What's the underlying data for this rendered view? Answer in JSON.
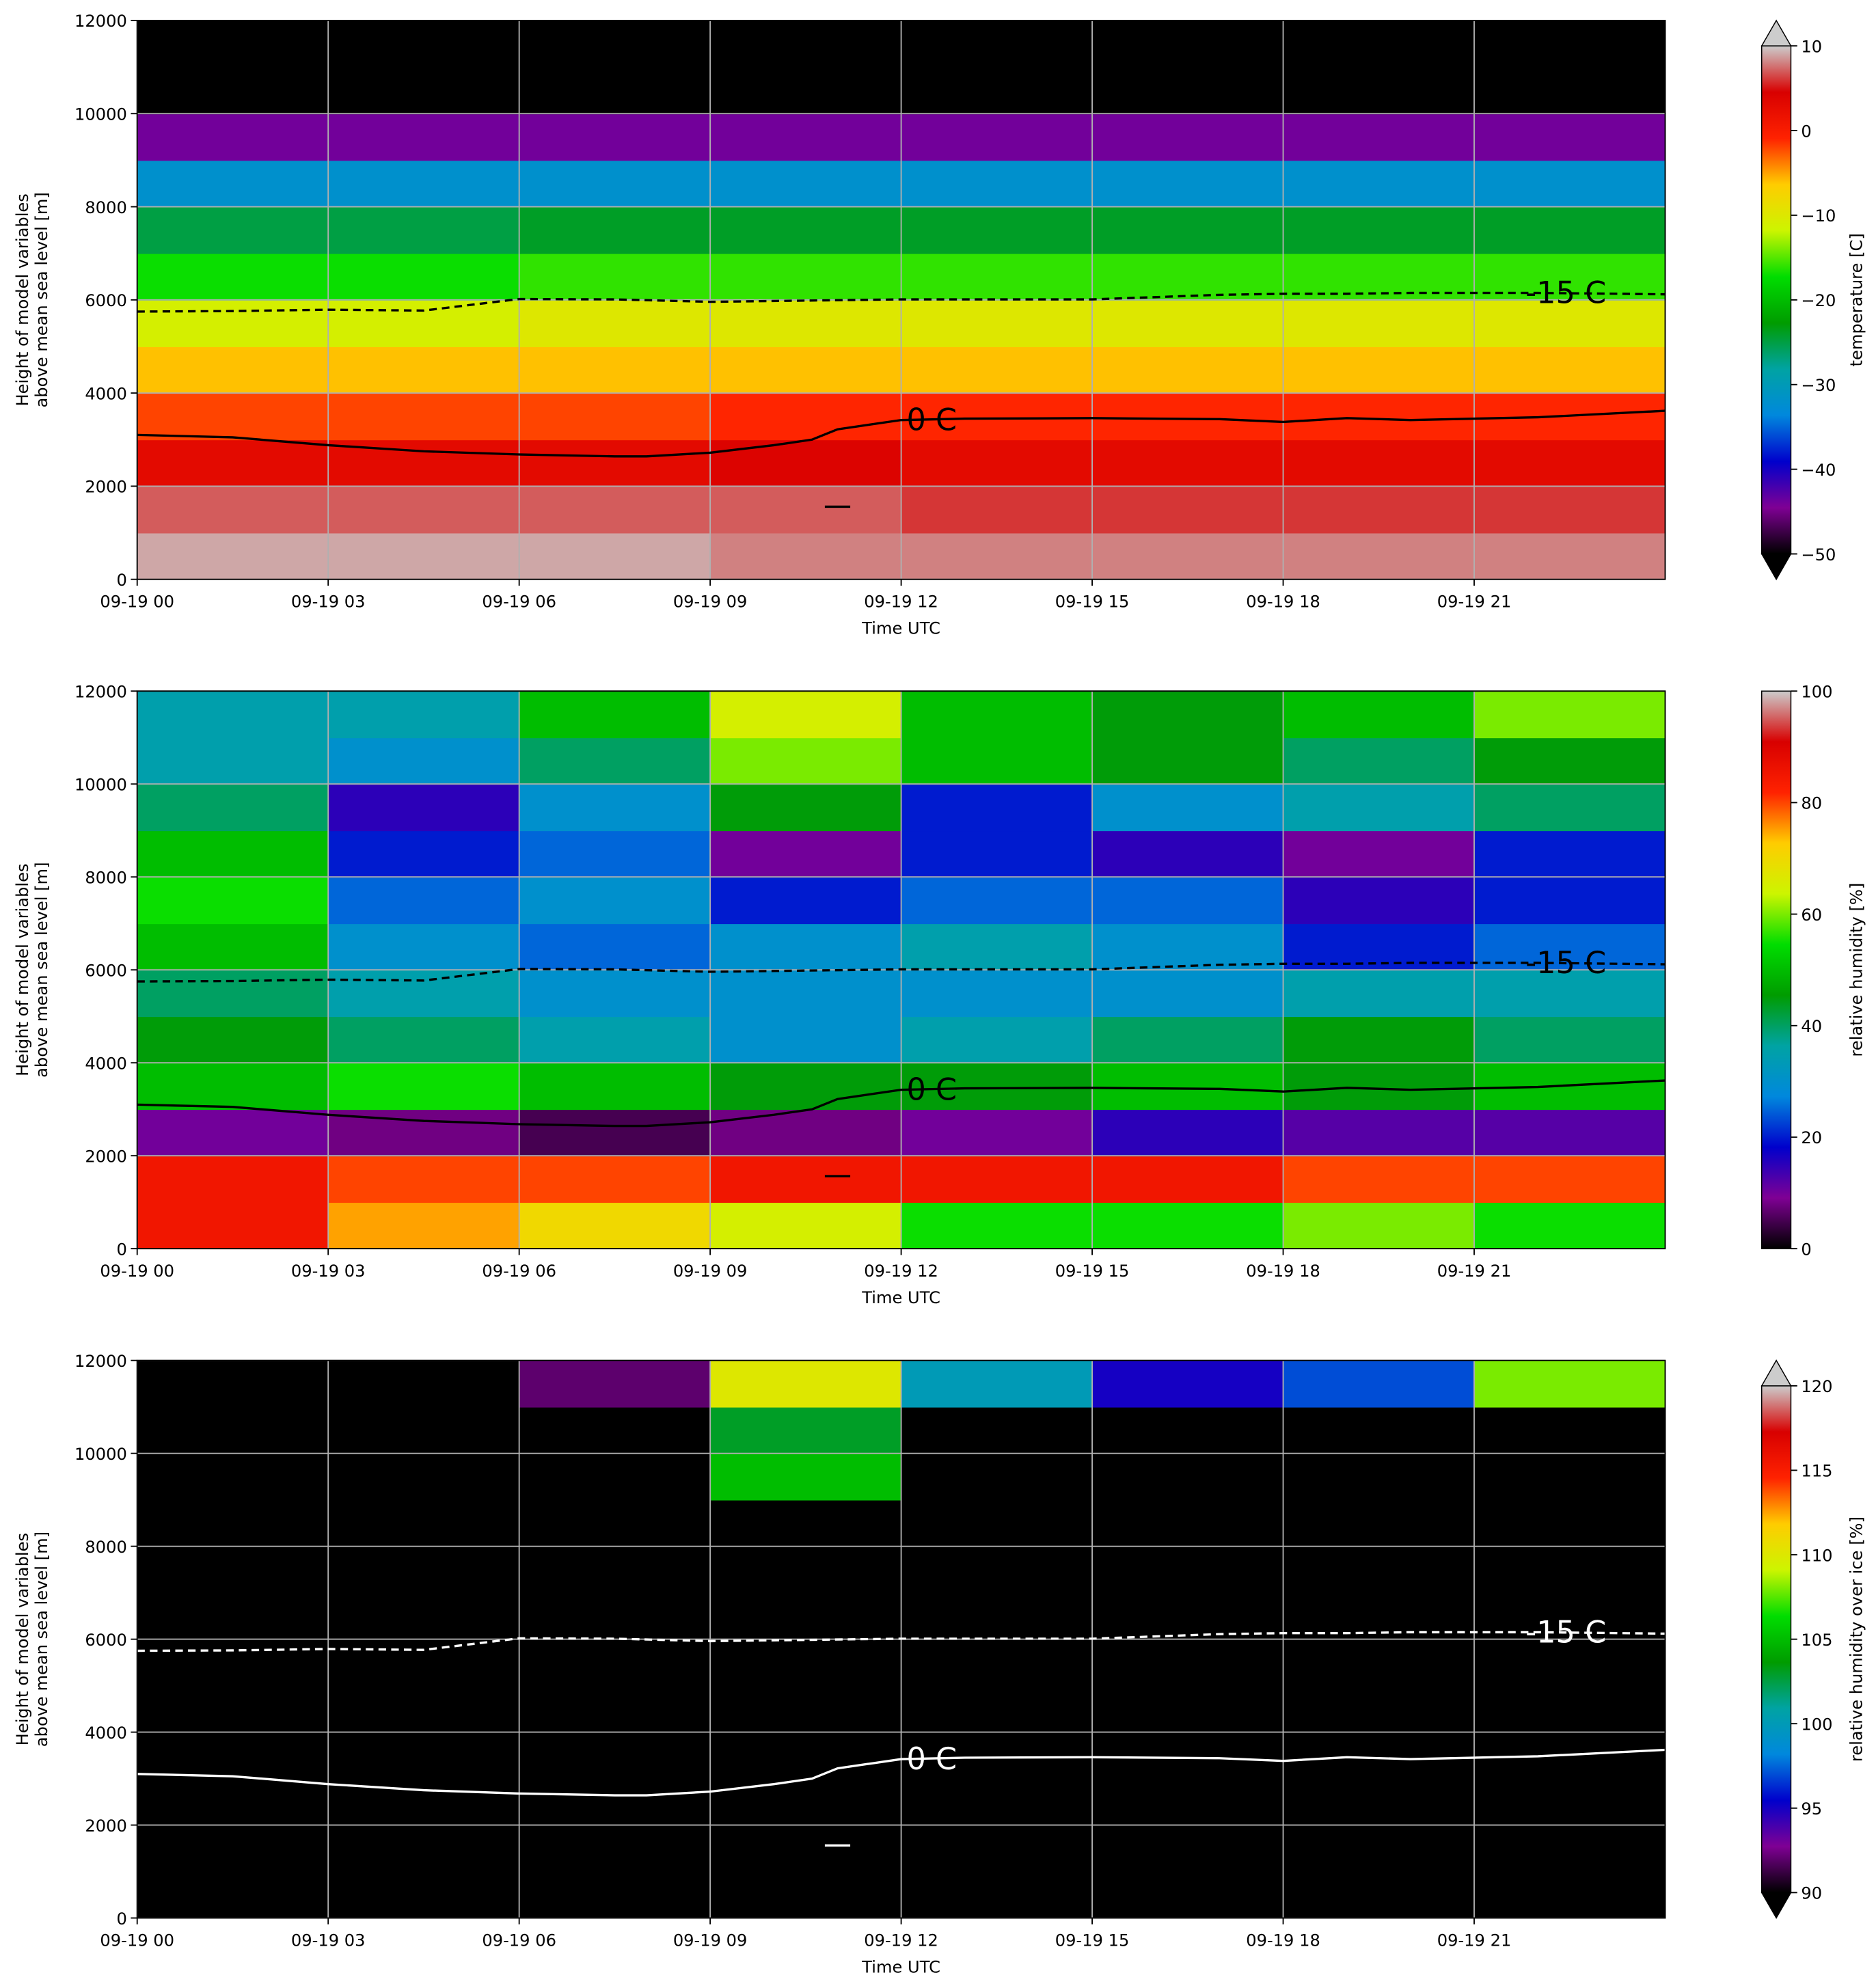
{
  "chart_data": [
    {
      "type": "heatmap",
      "xlabel": "Time UTC",
      "ylabel": [
        "Height of model variables",
        "above mean sea level [m]"
      ],
      "xlim": [
        0,
        24
      ],
      "xticks": [
        {
          "value": 0,
          "label": "09-19 00"
        },
        {
          "value": 3,
          "label": "09-19 03"
        },
        {
          "value": 6,
          "label": "09-19 06"
        },
        {
          "value": 9,
          "label": "09-19 09"
        },
        {
          "value": 12,
          "label": "09-19 12"
        },
        {
          "value": 15,
          "label": "09-19 15"
        },
        {
          "value": 18,
          "label": "09-19 18"
        },
        {
          "value": 21,
          "label": "09-19 21"
        }
      ],
      "ylim": [
        0,
        12000
      ],
      "yticks": [
        0,
        2000,
        4000,
        6000,
        8000,
        10000,
        12000
      ],
      "grid": true,
      "x": [
        1.5,
        4.5,
        7.5,
        10.5,
        13.5,
        16.5,
        19.5,
        22.5
      ],
      "y": [
        500,
        1500,
        2500,
        3500,
        4500,
        5500,
        6500,
        7500,
        8500,
        9500,
        10500,
        11500
      ],
      "z": [
        [
          9,
          9,
          9,
          8,
          8,
          8,
          8,
          8
        ],
        [
          7,
          7,
          7,
          7,
          6,
          6,
          6,
          6
        ],
        [
          3,
          3,
          3,
          4,
          3,
          3,
          3,
          3
        ],
        [
          -2,
          -2,
          -2,
          -1,
          -1,
          -1,
          -1,
          -1
        ],
        [
          -6,
          -6,
          -6,
          -6,
          -6,
          -6,
          -6,
          -6
        ],
        [
          -11,
          -11,
          -10,
          -10,
          -10,
          -10,
          -10,
          -10
        ],
        [
          -17,
          -17,
          -16,
          -16,
          -16,
          -16,
          -16,
          -16
        ],
        [
          -25,
          -25,
          -24,
          -24,
          -24,
          -24,
          -24,
          -24
        ],
        [
          -32,
          -32,
          -32,
          -32,
          -32,
          -32,
          -32,
          -32
        ],
        [
          -44,
          -44,
          -44,
          -44,
          -44,
          -44,
          -44,
          -44
        ],
        [
          -55,
          -55,
          -55,
          -55,
          -55,
          -55,
          -55,
          -55
        ],
        [
          -60,
          -60,
          -60,
          -60,
          -60,
          -60,
          -60,
          -60
        ]
      ],
      "zlim": [
        -50,
        10
      ],
      "zticks": [
        {
          "value": -50,
          "label": "−50"
        },
        {
          "value": -40,
          "label": "−40"
        },
        {
          "value": -30,
          "label": "−30"
        },
        {
          "value": -20,
          "label": "−20"
        },
        {
          "value": -10,
          "label": "−10"
        },
        0,
        10
      ],
      "colorbar_label": "temperature [C]",
      "extend": "both",
      "under_color": "#000000",
      "over_color": "#cccccc",
      "colormap": [
        "#000000",
        "#7f0094",
        "#0000cc",
        "#0088dd",
        "#00a3a3",
        "#009c00",
        "#00dd00",
        "#ccf500",
        "#ffcc00",
        "#ff2200",
        "#d80000",
        "#cccccc"
      ],
      "series": [
        {
          "name": "0 C",
          "color": "#000000",
          "linestyle": "solid",
          "x": [
            0,
            1.5,
            3,
            4.5,
            6,
            7.5,
            8,
            9,
            10,
            10.6,
            11,
            12,
            13,
            15,
            17,
            18,
            19,
            20,
            22,
            24,
            null,
            10.8,
            11.2
          ],
          "values": [
            3100,
            3050,
            2880,
            2750,
            2680,
            2640,
            2640,
            2720,
            2880,
            3000,
            3220,
            3420,
            3450,
            3460,
            3440,
            3380,
            3460,
            3420,
            3480,
            3620,
            null,
            1560,
            1560
          ]
        },
        {
          "name": "-15 C",
          "color": "#000000",
          "linestyle": "dashed",
          "x": [
            0,
            1.5,
            3,
            4.5,
            6,
            7.5,
            9,
            12,
            15,
            17,
            18,
            19,
            20,
            22,
            24
          ],
          "values": [
            5750,
            5760,
            5790,
            5770,
            6020,
            6010,
            5960,
            6010,
            6010,
            6110,
            6130,
            6130,
            6150,
            6150,
            6120
          ]
        }
      ]
    },
    {
      "type": "heatmap",
      "xlabel": "Time UTC",
      "ylabel": [
        "Height of model variables",
        "above mean sea level [m]"
      ],
      "xlim": [
        0,
        24
      ],
      "xticks": [
        {
          "value": 0,
          "label": "09-19 00"
        },
        {
          "value": 3,
          "label": "09-19 03"
        },
        {
          "value": 6,
          "label": "09-19 06"
        },
        {
          "value": 9,
          "label": "09-19 09"
        },
        {
          "value": 12,
          "label": "09-19 12"
        },
        {
          "value": 15,
          "label": "09-19 15"
        },
        {
          "value": 18,
          "label": "09-19 18"
        },
        {
          "value": 21,
          "label": "09-19 21"
        }
      ],
      "ylim": [
        0,
        12000
      ],
      "yticks": [
        0,
        2000,
        4000,
        6000,
        8000,
        10000,
        12000
      ],
      "grid": true,
      "x": [
        1.5,
        4.5,
        7.5,
        10.5,
        13.5,
        16.5,
        19.5,
        22.5
      ],
      "y": [
        500,
        1500,
        2500,
        3500,
        4500,
        5500,
        6500,
        7500,
        8500,
        9500,
        10500,
        11500
      ],
      "z": [
        [
          85,
          75,
          70,
          65,
          55,
          55,
          60,
          55
        ],
        [
          85,
          80,
          80,
          85,
          85,
          85,
          80,
          80
        ],
        [
          10,
          8,
          5,
          8,
          10,
          15,
          12,
          12
        ],
        [
          50,
          55,
          50,
          45,
          45,
          50,
          45,
          50
        ],
        [
          45,
          40,
          35,
          30,
          35,
          40,
          45,
          40
        ],
        [
          40,
          35,
          30,
          30,
          30,
          30,
          35,
          35
        ],
        [
          50,
          30,
          25,
          30,
          35,
          30,
          20,
          25
        ],
        [
          55,
          25,
          30,
          20,
          25,
          25,
          15,
          20
        ],
        [
          50,
          20,
          25,
          10,
          20,
          15,
          10,
          20
        ],
        [
          40,
          15,
          30,
          45,
          20,
          30,
          35,
          40
        ],
        [
          35,
          30,
          40,
          60,
          50,
          45,
          40,
          45
        ],
        [
          35,
          35,
          50,
          65,
          50,
          45,
          50,
          60
        ]
      ],
      "zlim": [
        0,
        100
      ],
      "zticks": [
        0,
        20,
        40,
        60,
        80,
        100
      ],
      "colorbar_label": "relative humidity [%]",
      "extend": "neither",
      "colormap": [
        "#000000",
        "#7f0094",
        "#0000cc",
        "#0088dd",
        "#00a3a3",
        "#009c00",
        "#00dd00",
        "#ccf500",
        "#ffcc00",
        "#ff2200",
        "#d80000",
        "#cccccc"
      ],
      "series": [
        {
          "name": "0 C",
          "color": "#000000",
          "linestyle": "solid",
          "x": [
            0,
            1.5,
            3,
            4.5,
            6,
            7.5,
            8,
            9,
            10,
            10.6,
            11,
            12,
            13,
            15,
            17,
            18,
            19,
            20,
            22,
            24,
            null,
            10.8,
            11.2
          ],
          "values": [
            3100,
            3050,
            2880,
            2750,
            2680,
            2640,
            2640,
            2720,
            2880,
            3000,
            3220,
            3420,
            3450,
            3460,
            3440,
            3380,
            3460,
            3420,
            3480,
            3620,
            null,
            1560,
            1560
          ]
        },
        {
          "name": "-15 C",
          "color": "#000000",
          "linestyle": "dashed",
          "x": [
            0,
            1.5,
            3,
            4.5,
            6,
            7.5,
            9,
            12,
            15,
            17,
            18,
            19,
            20,
            22,
            24
          ],
          "values": [
            5750,
            5760,
            5790,
            5770,
            6020,
            6010,
            5960,
            6010,
            6010,
            6110,
            6130,
            6130,
            6150,
            6150,
            6120
          ]
        }
      ]
    },
    {
      "type": "heatmap",
      "xlabel": "Time UTC",
      "ylabel": [
        "Height of model variables",
        "above mean sea level [m]"
      ],
      "xlim": [
        0,
        24
      ],
      "xticks": [
        {
          "value": 0,
          "label": "09-19 00"
        },
        {
          "value": 3,
          "label": "09-19 03"
        },
        {
          "value": 6,
          "label": "09-19 06"
        },
        {
          "value": 9,
          "label": "09-19 09"
        },
        {
          "value": 12,
          "label": "09-19 12"
        },
        {
          "value": 15,
          "label": "09-19 15"
        },
        {
          "value": 18,
          "label": "09-19 18"
        },
        {
          "value": 21,
          "label": "09-19 21"
        }
      ],
      "ylim": [
        0,
        12000
      ],
      "yticks": [
        0,
        2000,
        4000,
        6000,
        8000,
        10000,
        12000
      ],
      "grid": true,
      "x": [
        1.5,
        4.5,
        7.5,
        10.5,
        13.5,
        16.5,
        19.5,
        22.5
      ],
      "y": [
        500,
        1500,
        2500,
        3500,
        4500,
        5500,
        6500,
        7500,
        8500,
        9500,
        10500,
        11500
      ],
      "z": [
        [
          80,
          80,
          80,
          80,
          80,
          80,
          80,
          80
        ],
        [
          80,
          80,
          80,
          80,
          80,
          80,
          80,
          80
        ],
        [
          80,
          80,
          80,
          80,
          80,
          80,
          80,
          80
        ],
        [
          80,
          80,
          80,
          80,
          80,
          80,
          80,
          80
        ],
        [
          80,
          80,
          80,
          80,
          80,
          80,
          80,
          80
        ],
        [
          80,
          80,
          80,
          80,
          80,
          80,
          80,
          80
        ],
        [
          80,
          80,
          80,
          80,
          80,
          80,
          80,
          80
        ],
        [
          80,
          80,
          80,
          80,
          80,
          80,
          80,
          80
        ],
        [
          80,
          80,
          80,
          80,
          80,
          80,
          80,
          80
        ],
        [
          80,
          80,
          80,
          105,
          80,
          80,
          80,
          80
        ],
        [
          80,
          80,
          80,
          103,
          80,
          80,
          80,
          80
        ],
        [
          80,
          80,
          92,
          110,
          100,
          95,
          97,
          108
        ]
      ],
      "zlim": [
        90,
        120
      ],
      "zticks": [
        90,
        95,
        100,
        105,
        110,
        115,
        120
      ],
      "colorbar_label": "relative humidity over ice [%]",
      "extend": "both",
      "under_color": "#000000",
      "over_color": "#cccccc",
      "colormap": [
        "#000000",
        "#7f0094",
        "#0000cc",
        "#0088dd",
        "#00a3a3",
        "#009c00",
        "#00dd00",
        "#ccf500",
        "#ffcc00",
        "#ff2200",
        "#d80000",
        "#cccccc"
      ],
      "series": [
        {
          "name": "0 C",
          "color": "#ffffff",
          "linestyle": "solid",
          "x": [
            0,
            1.5,
            3,
            4.5,
            6,
            7.5,
            8,
            9,
            10,
            10.6,
            11,
            12,
            13,
            15,
            17,
            18,
            19,
            20,
            22,
            24,
            null,
            10.8,
            11.2
          ],
          "values": [
            3100,
            3050,
            2880,
            2750,
            2680,
            2640,
            2640,
            2720,
            2880,
            3000,
            3220,
            3420,
            3450,
            3460,
            3440,
            3380,
            3460,
            3420,
            3480,
            3620,
            null,
            1560,
            1560
          ]
        },
        {
          "name": "-15 C",
          "color": "#ffffff",
          "linestyle": "dashed",
          "x": [
            0,
            1.5,
            3,
            4.5,
            6,
            7.5,
            9,
            12,
            15,
            17,
            18,
            19,
            20,
            22,
            24
          ],
          "values": [
            5750,
            5760,
            5790,
            5770,
            6020,
            6010,
            5960,
            6010,
            6010,
            6110,
            6130,
            6130,
            6150,
            6150,
            6120
          ]
        }
      ]
    }
  ]
}
